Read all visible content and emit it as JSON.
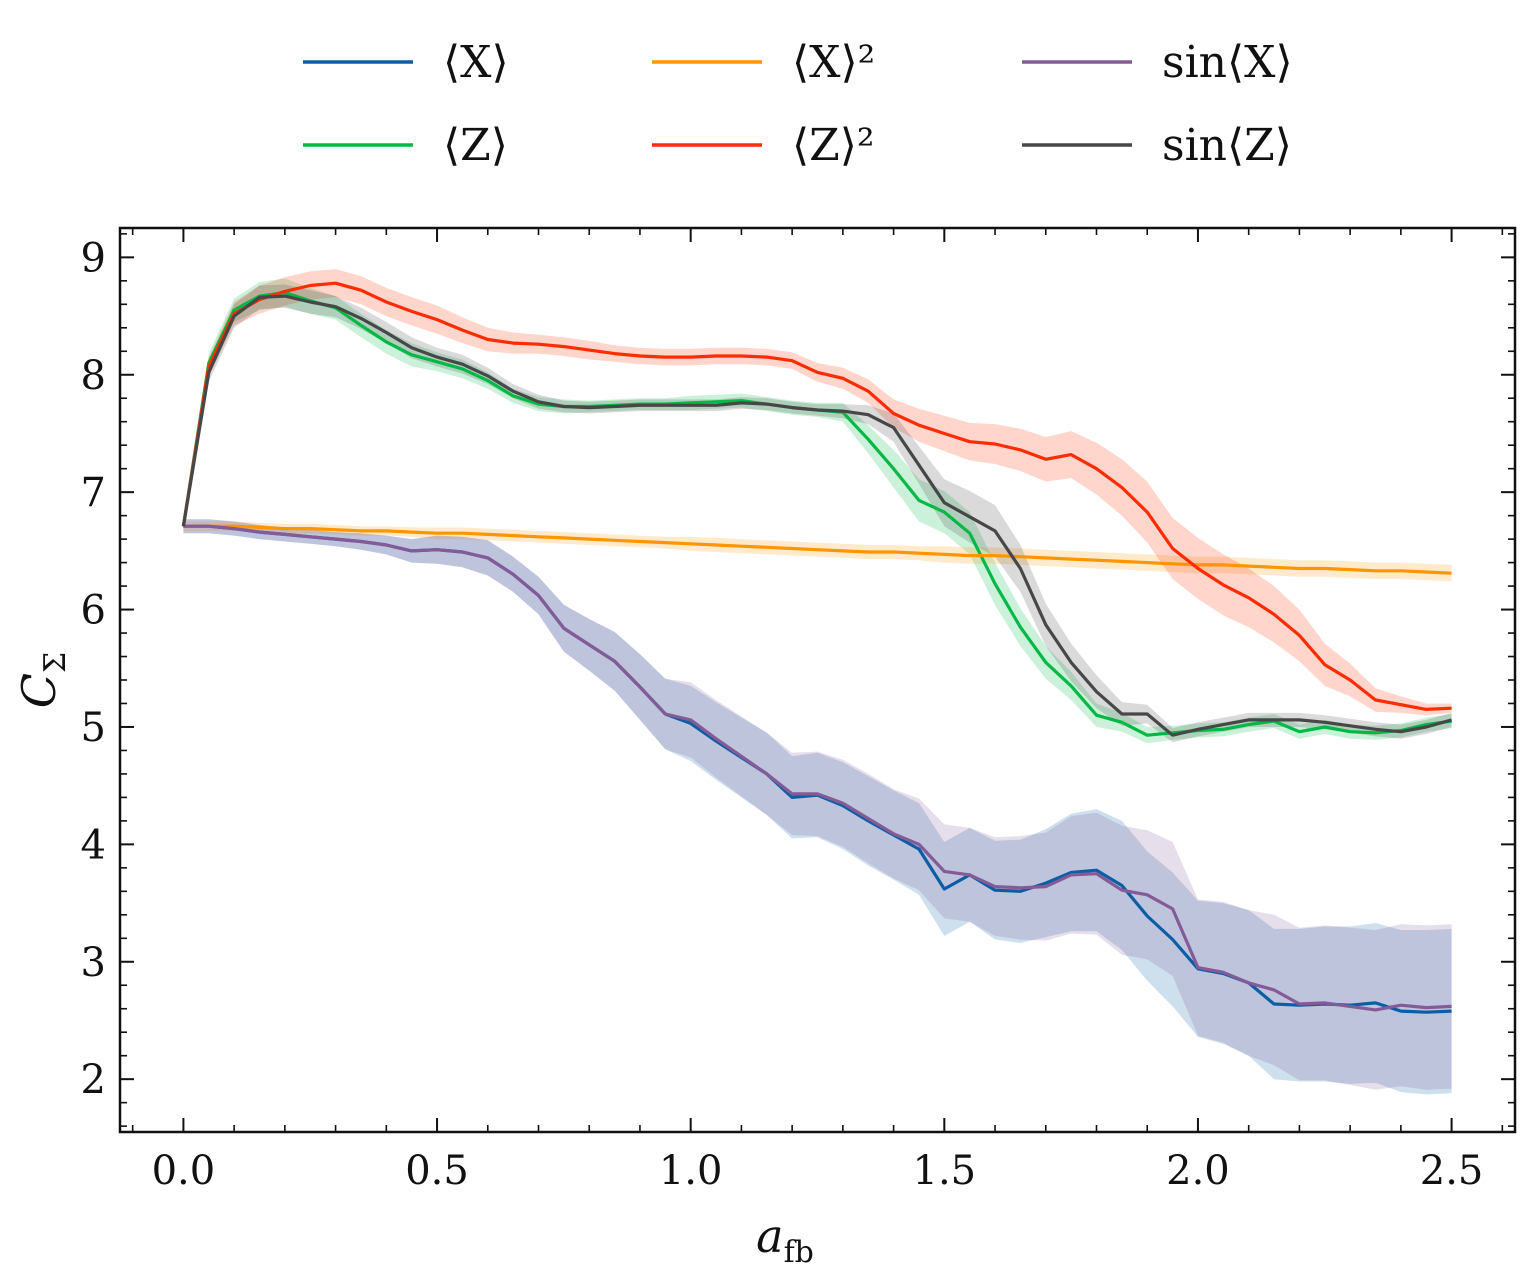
{
  "chart_data": {
    "type": "line",
    "title": "",
    "xlabel": "a_fb",
    "xlabel_main": "a",
    "xlabel_sub": "fb",
    "ylabel": "C_Σ",
    "ylabel_main": "C",
    "ylabel_sub": "Σ",
    "xlim": [
      -0.125,
      2.625
    ],
    "ylim": [
      1.55,
      9.25
    ],
    "x_ticks": [
      0.0,
      0.5,
      1.0,
      1.5,
      2.0,
      2.5
    ],
    "x_tick_labels": [
      "0.0",
      "0.5",
      "1.0",
      "1.5",
      "2.0",
      "2.5"
    ],
    "y_ticks": [
      2,
      3,
      4,
      5,
      6,
      7,
      8,
      9
    ],
    "y_tick_labels": [
      "2",
      "3",
      "4",
      "5",
      "6",
      "7",
      "8",
      "9"
    ],
    "legend_position": "top-outside",
    "x": [
      0.0,
      0.05,
      0.1,
      0.15,
      0.2,
      0.25,
      0.3,
      0.35,
      0.4,
      0.45,
      0.5,
      0.55,
      0.6,
      0.65,
      0.7,
      0.75,
      0.8,
      0.85,
      0.9,
      0.95,
      1.0,
      1.05,
      1.1,
      1.15,
      1.2,
      1.25,
      1.3,
      1.35,
      1.4,
      1.45,
      1.5,
      1.55,
      1.6,
      1.65,
      1.7,
      1.75,
      1.8,
      1.85,
      1.9,
      1.95,
      2.0,
      2.05,
      2.1,
      2.15,
      2.2,
      2.25,
      2.3,
      2.35,
      2.4,
      2.45,
      2.5
    ],
    "series": [
      {
        "name": "⟨X⟩",
        "color": "#0C5DA5",
        "band_opacity": 0.2,
        "values": [
          6.71,
          6.71,
          6.69,
          6.66,
          6.64,
          6.62,
          6.6,
          6.58,
          6.55,
          6.5,
          6.51,
          6.49,
          6.44,
          6.3,
          6.12,
          5.84,
          5.7,
          5.56,
          5.34,
          5.11,
          5.03,
          4.88,
          4.74,
          4.6,
          4.4,
          4.42,
          4.33,
          4.2,
          4.08,
          3.96,
          3.62,
          3.74,
          3.61,
          3.6,
          3.67,
          3.76,
          3.78,
          3.65,
          3.39,
          3.19,
          2.94,
          2.9,
          2.82,
          2.64,
          2.63,
          2.64,
          2.63,
          2.65,
          2.58,
          2.57,
          2.58
        ],
        "band": [
          0.06,
          0.06,
          0.06,
          0.06,
          0.06,
          0.06,
          0.06,
          0.07,
          0.08,
          0.1,
          0.12,
          0.13,
          0.15,
          0.15,
          0.16,
          0.2,
          0.22,
          0.25,
          0.28,
          0.3,
          0.32,
          0.33,
          0.34,
          0.35,
          0.35,
          0.36,
          0.37,
          0.38,
          0.38,
          0.39,
          0.4,
          0.4,
          0.42,
          0.44,
          0.46,
          0.5,
          0.52,
          0.55,
          0.55,
          0.57,
          0.58,
          0.6,
          0.62,
          0.64,
          0.65,
          0.66,
          0.67,
          0.68,
          0.69,
          0.7,
          0.7
        ]
      },
      {
        "name": "⟨Z⟩",
        "color": "#00B945",
        "band_opacity": 0.2,
        "values": [
          6.71,
          8.1,
          8.55,
          8.67,
          8.7,
          8.63,
          8.57,
          8.42,
          8.28,
          8.17,
          8.11,
          8.05,
          7.95,
          7.82,
          7.75,
          7.73,
          7.73,
          7.74,
          7.75,
          7.75,
          7.76,
          7.77,
          7.78,
          7.75,
          7.72,
          7.7,
          7.68,
          7.45,
          7.2,
          6.93,
          6.83,
          6.65,
          6.22,
          5.85,
          5.55,
          5.35,
          5.1,
          5.04,
          4.93,
          4.95,
          4.97,
          4.98,
          5.02,
          5.05,
          4.96,
          5.0,
          4.96,
          4.95,
          4.97,
          5.02,
          5.05
        ],
        "band": [
          0.02,
          0.08,
          0.1,
          0.12,
          0.12,
          0.11,
          0.1,
          0.1,
          0.1,
          0.1,
          0.08,
          0.08,
          0.07,
          0.06,
          0.06,
          0.06,
          0.05,
          0.05,
          0.05,
          0.05,
          0.06,
          0.06,
          0.06,
          0.06,
          0.06,
          0.06,
          0.08,
          0.12,
          0.16,
          0.18,
          0.18,
          0.18,
          0.18,
          0.16,
          0.14,
          0.12,
          0.1,
          0.08,
          0.07,
          0.06,
          0.06,
          0.06,
          0.06,
          0.06,
          0.06,
          0.06,
          0.06,
          0.06,
          0.06,
          0.06,
          0.06
        ]
      },
      {
        "name": "⟨X⟩²",
        "color": "#FF9500",
        "band_opacity": 0.2,
        "values": [
          6.71,
          6.71,
          6.71,
          6.7,
          6.69,
          6.69,
          6.68,
          6.67,
          6.67,
          6.66,
          6.65,
          6.65,
          6.64,
          6.63,
          6.62,
          6.61,
          6.6,
          6.59,
          6.58,
          6.57,
          6.56,
          6.55,
          6.54,
          6.53,
          6.52,
          6.51,
          6.5,
          6.49,
          6.49,
          6.48,
          6.47,
          6.46,
          6.46,
          6.45,
          6.44,
          6.43,
          6.42,
          6.41,
          6.4,
          6.39,
          6.38,
          6.38,
          6.37,
          6.36,
          6.35,
          6.35,
          6.34,
          6.33,
          6.33,
          6.32,
          6.31
        ],
        "band": [
          0.04,
          0.04,
          0.04,
          0.04,
          0.04,
          0.04,
          0.04,
          0.04,
          0.04,
          0.04,
          0.05,
          0.05,
          0.05,
          0.05,
          0.05,
          0.05,
          0.05,
          0.05,
          0.05,
          0.05,
          0.06,
          0.06,
          0.06,
          0.06,
          0.06,
          0.06,
          0.06,
          0.06,
          0.06,
          0.06,
          0.07,
          0.07,
          0.07,
          0.07,
          0.07,
          0.07,
          0.07,
          0.07,
          0.07,
          0.07,
          0.07,
          0.07,
          0.07,
          0.07,
          0.07,
          0.07,
          0.07,
          0.07,
          0.07,
          0.07,
          0.07
        ]
      },
      {
        "name": "⟨Z⟩²",
        "color": "#FF2C00",
        "band_opacity": 0.2,
        "values": [
          6.71,
          8.07,
          8.52,
          8.64,
          8.71,
          8.76,
          8.78,
          8.72,
          8.62,
          8.54,
          8.47,
          8.38,
          8.3,
          8.27,
          8.26,
          8.24,
          8.21,
          8.18,
          8.16,
          8.15,
          8.15,
          8.16,
          8.16,
          8.15,
          8.12,
          8.02,
          7.97,
          7.86,
          7.67,
          7.57,
          7.5,
          7.43,
          7.41,
          7.36,
          7.28,
          7.32,
          7.2,
          7.04,
          6.83,
          6.52,
          6.35,
          6.21,
          6.1,
          5.96,
          5.78,
          5.53,
          5.4,
          5.23,
          5.19,
          5.15,
          5.16
        ],
        "band": [
          0.02,
          0.08,
          0.1,
          0.12,
          0.12,
          0.12,
          0.12,
          0.12,
          0.12,
          0.12,
          0.12,
          0.11,
          0.1,
          0.09,
          0.08,
          0.08,
          0.08,
          0.07,
          0.07,
          0.07,
          0.07,
          0.07,
          0.07,
          0.07,
          0.07,
          0.08,
          0.09,
          0.1,
          0.12,
          0.14,
          0.15,
          0.16,
          0.17,
          0.18,
          0.19,
          0.2,
          0.22,
          0.24,
          0.26,
          0.26,
          0.26,
          0.26,
          0.25,
          0.24,
          0.22,
          0.18,
          0.14,
          0.1,
          0.07,
          0.05,
          0.04
        ]
      },
      {
        "name": "sin⟨X⟩",
        "color": "#845B97",
        "band_opacity": 0.2,
        "values": [
          6.71,
          6.71,
          6.69,
          6.66,
          6.64,
          6.62,
          6.6,
          6.58,
          6.55,
          6.5,
          6.51,
          6.49,
          6.44,
          6.3,
          6.12,
          5.84,
          5.7,
          5.56,
          5.34,
          5.11,
          5.06,
          4.9,
          4.75,
          4.6,
          4.43,
          4.43,
          4.35,
          4.22,
          4.09,
          4.0,
          3.77,
          3.74,
          3.64,
          3.63,
          3.64,
          3.74,
          3.75,
          3.61,
          3.57,
          3.45,
          2.95,
          2.91,
          2.82,
          2.76,
          2.64,
          2.65,
          2.62,
          2.59,
          2.63,
          2.61,
          2.62
        ],
        "band": [
          0.06,
          0.06,
          0.06,
          0.06,
          0.06,
          0.06,
          0.06,
          0.07,
          0.08,
          0.1,
          0.12,
          0.13,
          0.15,
          0.15,
          0.16,
          0.2,
          0.22,
          0.25,
          0.28,
          0.3,
          0.32,
          0.33,
          0.34,
          0.35,
          0.35,
          0.36,
          0.37,
          0.38,
          0.38,
          0.39,
          0.4,
          0.4,
          0.42,
          0.44,
          0.46,
          0.5,
          0.52,
          0.55,
          0.55,
          0.57,
          0.58,
          0.6,
          0.62,
          0.64,
          0.65,
          0.66,
          0.67,
          0.68,
          0.69,
          0.7,
          0.7
        ]
      },
      {
        "name": "sin⟨Z⟩",
        "color": "#474747",
        "band_opacity": 0.2,
        "values": [
          6.71,
          8.02,
          8.5,
          8.66,
          8.67,
          8.62,
          8.58,
          8.48,
          8.36,
          8.23,
          8.15,
          8.09,
          7.99,
          7.86,
          7.77,
          7.73,
          7.72,
          7.73,
          7.74,
          7.74,
          7.74,
          7.74,
          7.76,
          7.75,
          7.72,
          7.7,
          7.69,
          7.66,
          7.55,
          7.23,
          6.91,
          6.79,
          6.67,
          6.35,
          5.87,
          5.55,
          5.3,
          5.11,
          5.11,
          4.93,
          4.98,
          5.02,
          5.06,
          5.06,
          5.06,
          5.04,
          5.01,
          4.98,
          4.96,
          5.0,
          5.06
        ],
        "band": [
          0.02,
          0.08,
          0.1,
          0.1,
          0.1,
          0.1,
          0.09,
          0.09,
          0.09,
          0.09,
          0.08,
          0.08,
          0.07,
          0.06,
          0.06,
          0.05,
          0.05,
          0.05,
          0.05,
          0.05,
          0.05,
          0.05,
          0.05,
          0.05,
          0.05,
          0.05,
          0.06,
          0.08,
          0.12,
          0.16,
          0.2,
          0.22,
          0.22,
          0.2,
          0.18,
          0.16,
          0.14,
          0.1,
          0.08,
          0.06,
          0.06,
          0.06,
          0.06,
          0.06,
          0.06,
          0.06,
          0.06,
          0.06,
          0.06,
          0.06,
          0.06
        ]
      }
    ]
  }
}
